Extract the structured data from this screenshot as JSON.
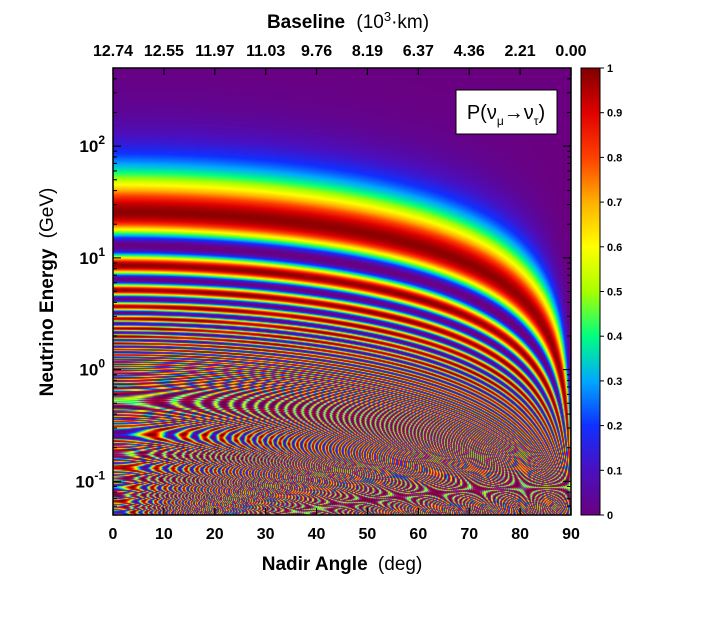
{
  "chart_data": {
    "type": "heatmap",
    "top_axis": {
      "label_bold": "Baseline",
      "label_unit_prefix": "(10",
      "label_unit_exp": "3",
      "label_unit_suffix": "·km)",
      "tick_labels": [
        "12.74",
        "12.55",
        "11.97",
        "11.03",
        "9.76",
        "8.19",
        "6.37",
        "4.36",
        "2.21",
        "0.00"
      ]
    },
    "x_axis": {
      "label_bold": "Nadir Angle",
      "label_unit": "(deg)",
      "ticks": [
        0,
        10,
        20,
        30,
        40,
        50,
        60,
        70,
        80,
        90
      ],
      "range": [
        0,
        90
      ]
    },
    "y_axis": {
      "label_bold": "Neutrino Energy",
      "label_unit": "(GeV)",
      "scale": "log",
      "range": [
        0.05,
        500
      ],
      "ticks": [
        {
          "value": 0.1,
          "base": "10",
          "exp": "-1"
        },
        {
          "value": 1,
          "base": "10",
          "exp": "0"
        },
        {
          "value": 10,
          "base": "10",
          "exp": "1"
        },
        {
          "value": 100,
          "base": "10",
          "exp": "2"
        }
      ]
    },
    "quantity_label": {
      "main": "P(ν",
      "sub1": "μ",
      "arrow": "→ν",
      "sub2": "τ",
      "close": ")"
    },
    "colorbar": {
      "range": [
        0,
        1
      ],
      "tick_labels": [
        "0",
        "0.1",
        "0.2",
        "0.3",
        "0.4",
        "0.5",
        "0.6",
        "0.7",
        "0.8",
        "0.9",
        "1"
      ],
      "colors": [
        "#6a0080",
        "#4a10c0",
        "#1030ff",
        "#00a8ff",
        "#00ff80",
        "#a8ff00",
        "#ffff00",
        "#ffb000",
        "#ff4000",
        "#e00000",
        "#800000"
      ]
    },
    "legend_position": "top-right",
    "grid": false
  }
}
